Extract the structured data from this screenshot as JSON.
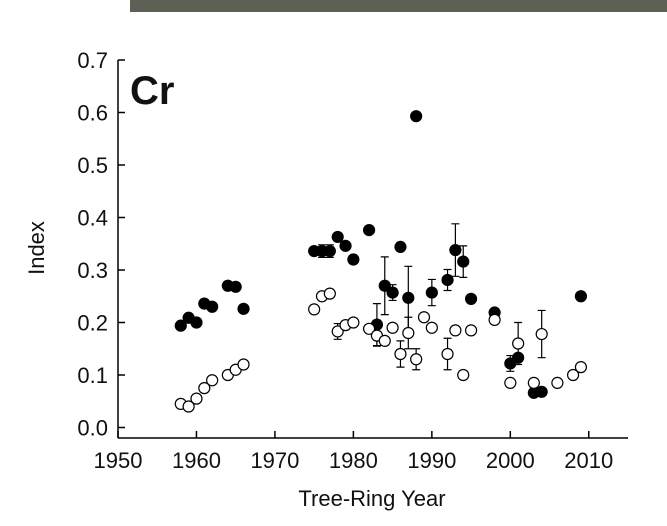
{
  "chart_data": {
    "type": "scatter",
    "annotation": "Cr",
    "x_label": "Tree-Ring Year",
    "y_label": "Index",
    "xlim": [
      1950,
      2015
    ],
    "ylim": [
      -0.02,
      0.7
    ],
    "xticks": [
      1950,
      1960,
      1970,
      1980,
      1990,
      2000,
      2010
    ],
    "yticks": [
      {
        "value": 0,
        "label": "0.0"
      },
      0.1,
      0.2,
      0.3,
      0.4,
      0.5,
      0.6,
      0.7
    ],
    "series": [
      {
        "color": "#000000",
        "filled": true,
        "x": [
          1958,
          1959,
          1960,
          1961,
          1962,
          1964,
          1965,
          1966,
          1975,
          1976,
          1977,
          1978,
          1979,
          1980,
          1982,
          1983,
          1984,
          1985,
          1986,
          1987,
          1988,
          1990,
          1992,
          1993,
          1994,
          1995,
          1998,
          2000,
          2001,
          2003,
          2004,
          2009
        ],
        "values": [
          0.194,
          0.209,
          0.2,
          0.236,
          0.23,
          0.27,
          0.268,
          0.226,
          0.336,
          0.336,
          0.336,
          0.363,
          0.346,
          0.32,
          0.376,
          0.196,
          0.27,
          0.257,
          0.344,
          0.247,
          0.593,
          0.257,
          0.281,
          0.338,
          0.316,
          0.245,
          0.219,
          0.122,
          0.133,
          0.066,
          0.068,
          0.25
        ],
        "errors": [
          null,
          null,
          null,
          null,
          null,
          null,
          null,
          null,
          null,
          0.012,
          0.012,
          null,
          null,
          null,
          null,
          0.04,
          0.055,
          0.015,
          null,
          0.06,
          null,
          0.025,
          0.02,
          0.05,
          0.03,
          null,
          null,
          0.015,
          null,
          null,
          null,
          null
        ]
      },
      {
        "color": "#000000",
        "filled": false,
        "x": [
          1958,
          1959,
          1960,
          1961,
          1962,
          1964,
          1965,
          1966,
          1975,
          1976,
          1977,
          1978,
          1979,
          1980,
          1982,
          1983,
          1984,
          1985,
          1986,
          1987,
          1988,
          1989,
          1990,
          1992,
          1993,
          1994,
          1995,
          1998,
          2000,
          2001,
          2003,
          2004,
          2006,
          2008,
          2009
        ],
        "values": [
          0.045,
          0.04,
          0.055,
          0.075,
          0.09,
          0.1,
          0.11,
          0.12,
          0.225,
          0.25,
          0.255,
          0.183,
          0.195,
          0.2,
          0.188,
          0.175,
          0.165,
          0.19,
          0.14,
          0.18,
          0.13,
          0.21,
          0.19,
          0.14,
          0.185,
          0.1,
          0.185,
          0.205,
          0.085,
          0.16,
          0.085,
          0.178,
          0.085,
          0.1,
          0.115
        ],
        "errors": [
          null,
          null,
          null,
          null,
          null,
          null,
          null,
          null,
          null,
          null,
          null,
          0.015,
          null,
          null,
          null,
          0.02,
          null,
          null,
          0.025,
          0.03,
          0.02,
          null,
          null,
          0.03,
          null,
          null,
          null,
          null,
          null,
          0.04,
          null,
          0.045,
          null,
          null,
          null
        ]
      }
    ]
  }
}
